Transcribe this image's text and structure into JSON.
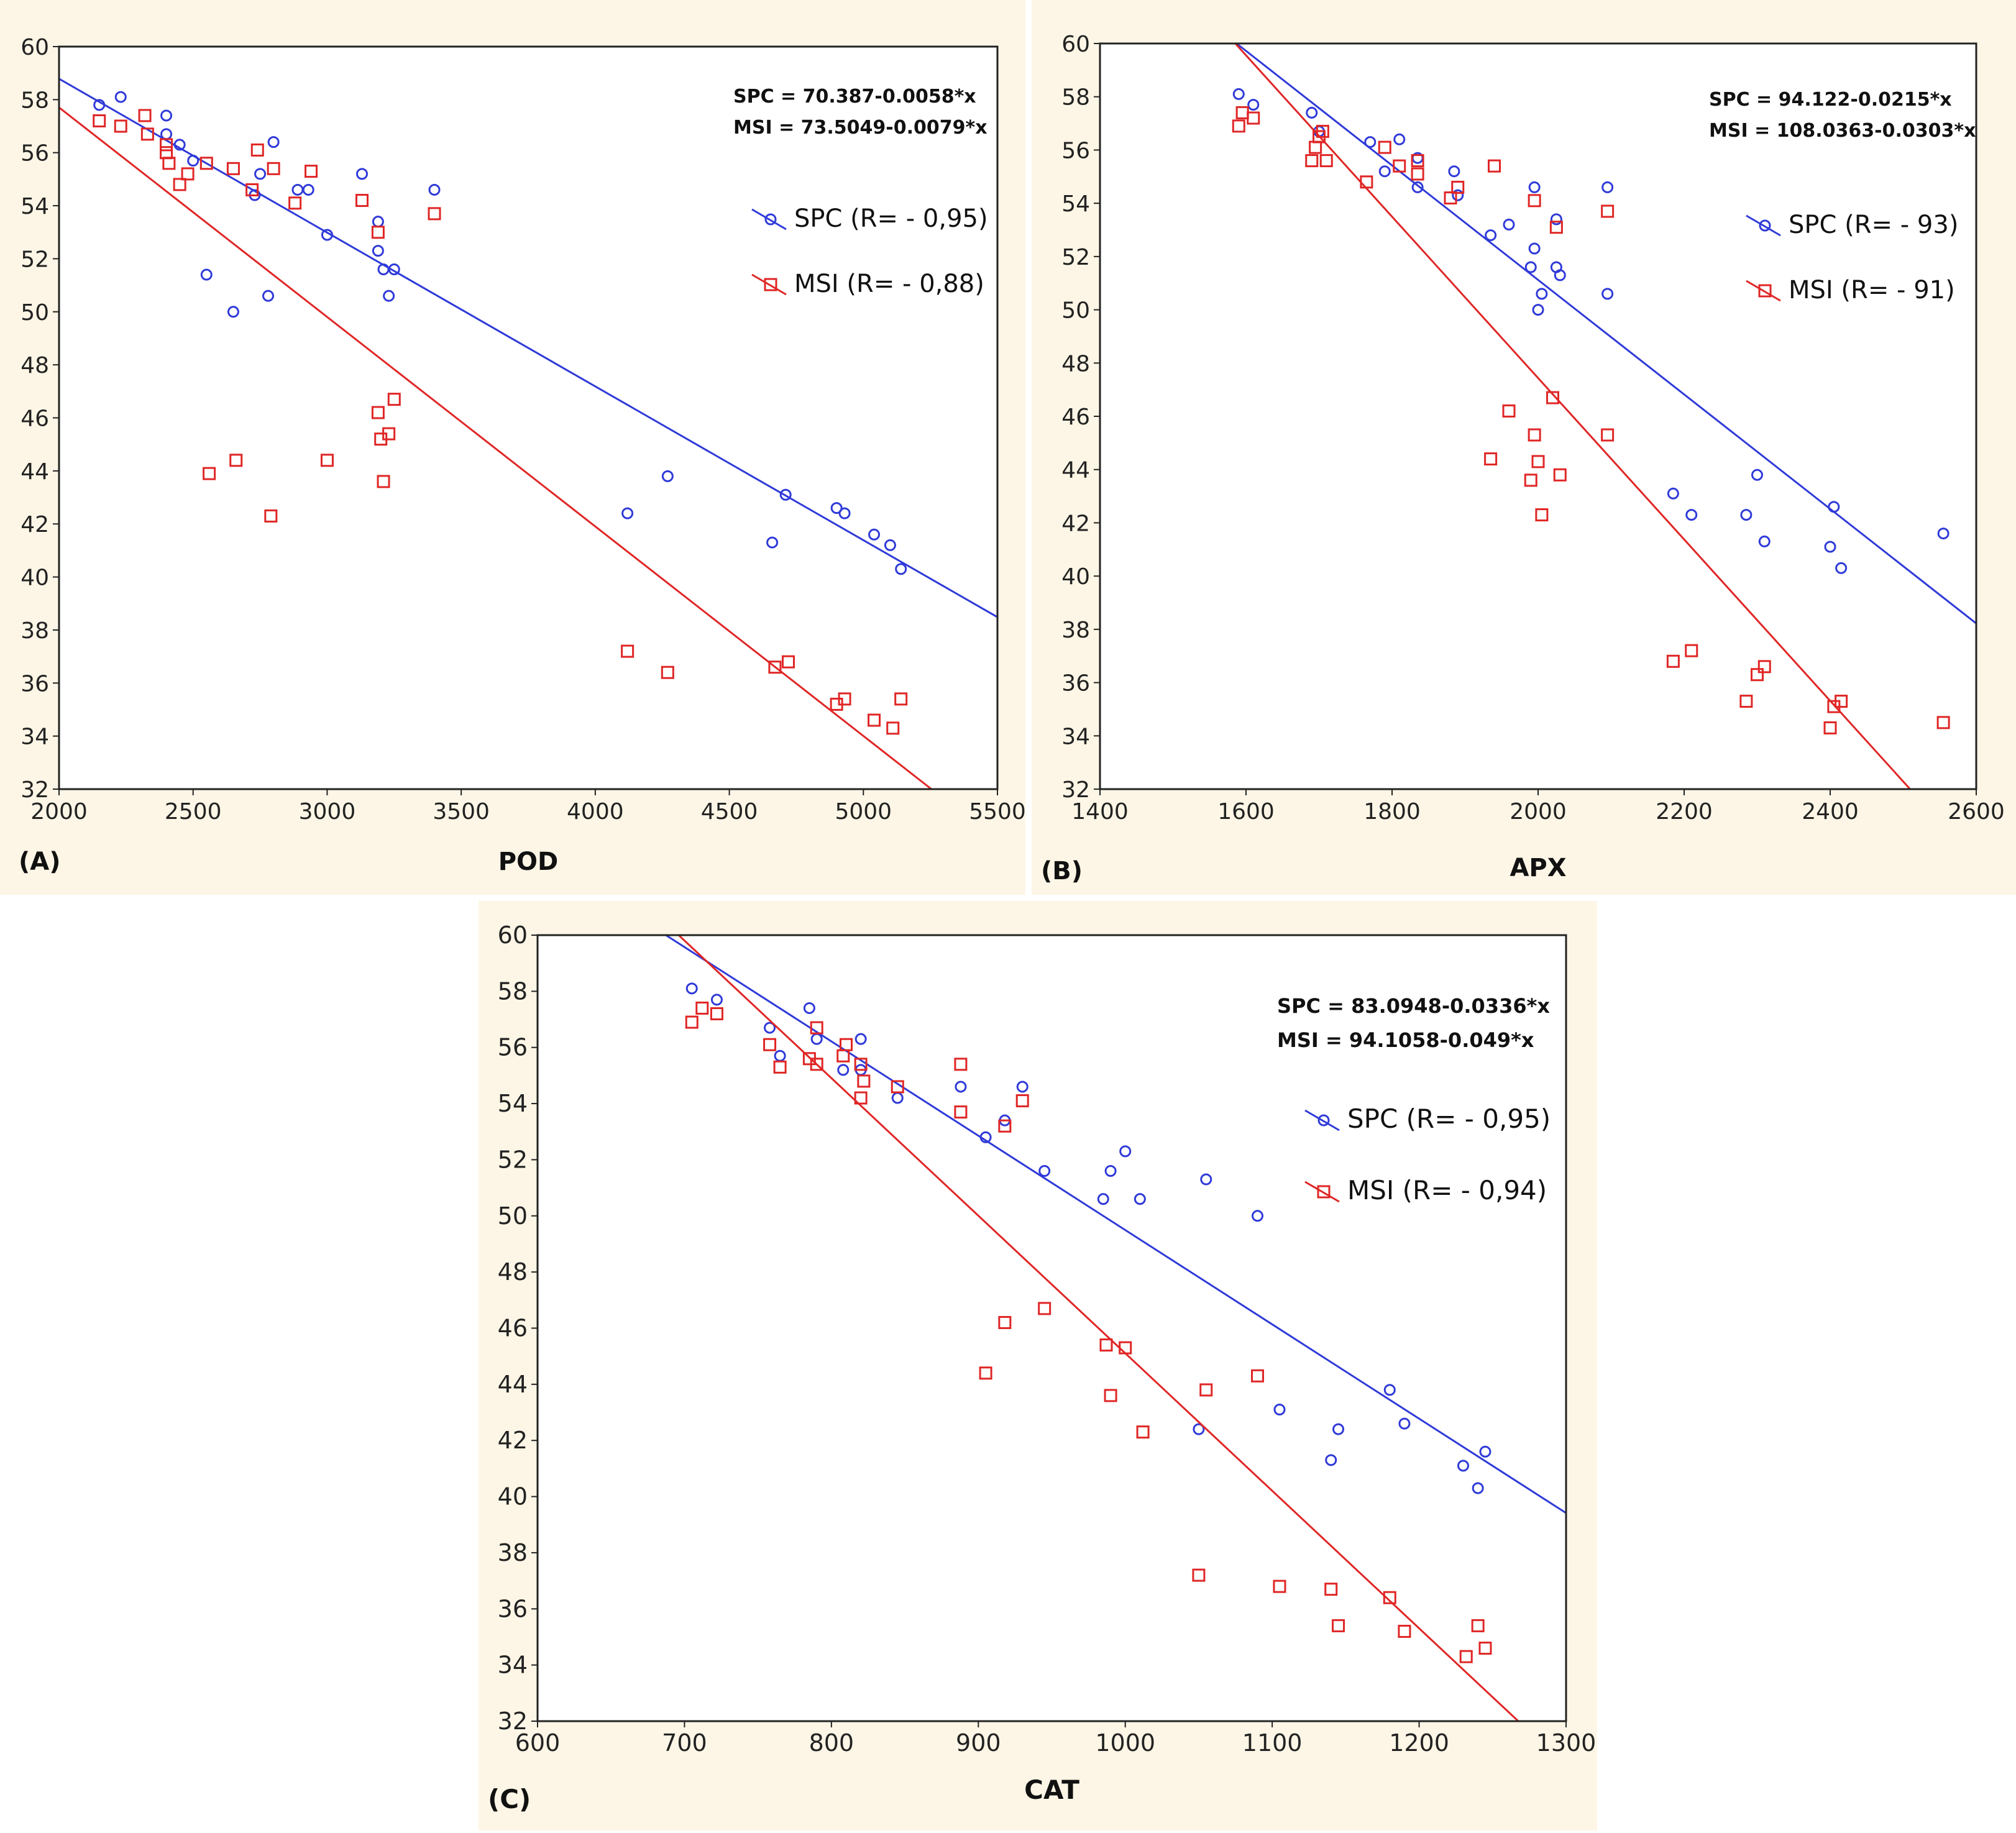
{
  "colors": {
    "panel_background": "#fdf6e6",
    "plot_background": "#ffffff",
    "spc": "#2f3ad8",
    "msi": "#e02626",
    "axis": "#222222"
  },
  "chart_data": [
    {
      "id": "A",
      "panel_label": "(A)",
      "type": "scatter",
      "xlabel": "POD",
      "ylabel": "",
      "xlim": [
        2000,
        5500
      ],
      "ylim": [
        32,
        60
      ],
      "xticks": [
        2000,
        2500,
        3000,
        3500,
        4000,
        4500,
        5000,
        5500
      ],
      "yticks": [
        32,
        34,
        36,
        38,
        40,
        42,
        44,
        46,
        48,
        50,
        52,
        54,
        56,
        58,
        60
      ],
      "grid": false,
      "equations": [
        "SPC = 70.387-0.0058*x",
        "MSI = 73.5049-0.0079*x"
      ],
      "legend_position": "top-right",
      "series": [
        {
          "name": "SPC",
          "legend": "SPC (R= - 0,95)",
          "marker": "circle",
          "fit": {
            "intercept": 70.387,
            "slope": -0.0058
          },
          "points": [
            [
              2150,
              57.8
            ],
            [
              2230,
              58.1
            ],
            [
              2400,
              57.4
            ],
            [
              2400,
              56.7
            ],
            [
              2450,
              56.3
            ],
            [
              2500,
              55.7
            ],
            [
              2550,
              51.4
            ],
            [
              2650,
              50.0
            ],
            [
              2730,
              54.4
            ],
            [
              2750,
              55.2
            ],
            [
              2780,
              50.6
            ],
            [
              2800,
              56.4
            ],
            [
              2890,
              54.6
            ],
            [
              2930,
              54.6
            ],
            [
              3000,
              52.9
            ],
            [
              3130,
              55.2
            ],
            [
              3190,
              53.4
            ],
            [
              3190,
              52.3
            ],
            [
              3210,
              51.6
            ],
            [
              3230,
              50.6
            ],
            [
              3250,
              51.6
            ],
            [
              3400,
              54.6
            ],
            [
              4120,
              42.4
            ],
            [
              4270,
              43.8
            ],
            [
              4660,
              41.3
            ],
            [
              4710,
              43.1
            ],
            [
              4900,
              42.6
            ],
            [
              4930,
              42.4
            ],
            [
              5040,
              41.6
            ],
            [
              5100,
              41.2
            ],
            [
              5140,
              40.3
            ]
          ]
        },
        {
          "name": "MSI",
          "legend": "MSI (R= - 0,88)",
          "marker": "square",
          "fit": {
            "intercept": 73.5049,
            "slope": -0.0079
          },
          "points": [
            [
              2150,
              57.2
            ],
            [
              2230,
              57.0
            ],
            [
              2320,
              57.4
            ],
            [
              2330,
              56.7
            ],
            [
              2400,
              56.3
            ],
            [
              2400,
              56.0
            ],
            [
              2410,
              55.6
            ],
            [
              2450,
              54.8
            ],
            [
              2480,
              55.2
            ],
            [
              2550,
              55.6
            ],
            [
              2560,
              43.9
            ],
            [
              2650,
              55.4
            ],
            [
              2660,
              44.4
            ],
            [
              2720,
              54.6
            ],
            [
              2740,
              56.1
            ],
            [
              2790,
              42.3
            ],
            [
              2800,
              55.4
            ],
            [
              2880,
              54.1
            ],
            [
              2940,
              55.3
            ],
            [
              3000,
              44.4
            ],
            [
              3130,
              54.2
            ],
            [
              3190,
              53.0
            ],
            [
              3190,
              46.2
            ],
            [
              3200,
              45.2
            ],
            [
              3210,
              43.6
            ],
            [
              3230,
              45.4
            ],
            [
              3250,
              46.7
            ],
            [
              3400,
              53.7
            ],
            [
              4120,
              37.2
            ],
            [
              4270,
              36.4
            ],
            [
              4670,
              36.6
            ],
            [
              4720,
              36.8
            ],
            [
              4900,
              35.2
            ],
            [
              4930,
              35.4
            ],
            [
              5040,
              34.6
            ],
            [
              5110,
              34.3
            ],
            [
              5140,
              35.4
            ]
          ]
        }
      ]
    },
    {
      "id": "B",
      "panel_label": "(B)",
      "type": "scatter",
      "xlabel": "APX",
      "ylabel": "",
      "xlim": [
        1400,
        2600
      ],
      "ylim": [
        32,
        60
      ],
      "xticks": [
        1400,
        1600,
        1800,
        2000,
        2200,
        2400,
        2600
      ],
      "yticks": [
        32,
        34,
        36,
        38,
        40,
        42,
        44,
        46,
        48,
        50,
        52,
        54,
        56,
        58,
        60
      ],
      "grid": false,
      "equations": [
        "SPC = 94.122-0.0215*x",
        "MSI = 108.0363-0.0303*x"
      ],
      "legend_position": "top-right",
      "series": [
        {
          "name": "SPC",
          "legend": "SPC (R= - 93)",
          "marker": "circle",
          "fit": {
            "intercept": 94.122,
            "slope": -0.0215
          },
          "points": [
            [
              1590,
              58.1
            ],
            [
              1610,
              57.7
            ],
            [
              1690,
              57.4
            ],
            [
              1700,
              56.7
            ],
            [
              1770,
              56.3
            ],
            [
              1790,
              55.2
            ],
            [
              1810,
              56.4
            ],
            [
              1835,
              55.7
            ],
            [
              1835,
              54.6
            ],
            [
              1885,
              55.2
            ],
            [
              1890,
              54.3
            ],
            [
              1935,
              52.8
            ],
            [
              1960,
              53.2
            ],
            [
              1990,
              51.6
            ],
            [
              1995,
              52.3
            ],
            [
              1995,
              54.6
            ],
            [
              2000,
              50.0
            ],
            [
              2005,
              50.6
            ],
            [
              2025,
              53.4
            ],
            [
              2025,
              51.6
            ],
            [
              2030,
              51.3
            ],
            [
              2095,
              50.6
            ],
            [
              2095,
              54.6
            ],
            [
              2185,
              43.1
            ],
            [
              2210,
              42.3
            ],
            [
              2285,
              42.3
            ],
            [
              2300,
              43.8
            ],
            [
              2310,
              41.3
            ],
            [
              2400,
              41.1
            ],
            [
              2405,
              42.6
            ],
            [
              2415,
              40.3
            ],
            [
              2555,
              41.6
            ]
          ]
        },
        {
          "name": "MSI",
          "legend": "MSI (R= - 91)",
          "marker": "square",
          "fit": {
            "intercept": 108.0363,
            "slope": -0.0303
          },
          "points": [
            [
              1590,
              56.9
            ],
            [
              1595,
              57.4
            ],
            [
              1610,
              57.2
            ],
            [
              1690,
              55.6
            ],
            [
              1695,
              56.1
            ],
            [
              1700,
              56.5
            ],
            [
              1705,
              56.7
            ],
            [
              1710,
              55.6
            ],
            [
              1765,
              54.8
            ],
            [
              1790,
              56.1
            ],
            [
              1810,
              55.4
            ],
            [
              1835,
              55.6
            ],
            [
              1835,
              55.1
            ],
            [
              1880,
              54.2
            ],
            [
              1890,
              54.6
            ],
            [
              1935,
              44.4
            ],
            [
              1940,
              55.4
            ],
            [
              1960,
              46.2
            ],
            [
              1990,
              43.6
            ],
            [
              1995,
              54.1
            ],
            [
              1995,
              45.3
            ],
            [
              2000,
              44.3
            ],
            [
              2005,
              42.3
            ],
            [
              2020,
              46.7
            ],
            [
              2025,
              53.1
            ],
            [
              2030,
              43.8
            ],
            [
              2095,
              45.3
            ],
            [
              2095,
              53.7
            ],
            [
              2185,
              36.8
            ],
            [
              2210,
              37.2
            ],
            [
              2285,
              35.3
            ],
            [
              2300,
              36.3
            ],
            [
              2310,
              36.6
            ],
            [
              2400,
              34.3
            ],
            [
              2405,
              35.1
            ],
            [
              2415,
              35.3
            ],
            [
              2555,
              34.5
            ]
          ]
        }
      ]
    },
    {
      "id": "C",
      "panel_label": "(C)",
      "type": "scatter",
      "xlabel": "CAT",
      "ylabel": "",
      "xlim": [
        600,
        1300
      ],
      "ylim": [
        32,
        60
      ],
      "xticks": [
        600,
        700,
        800,
        900,
        1000,
        1100,
        1200,
        1300
      ],
      "yticks": [
        32,
        34,
        36,
        38,
        40,
        42,
        44,
        46,
        48,
        50,
        52,
        54,
        56,
        58,
        60
      ],
      "grid": false,
      "equations": [
        "SPC = 83.0948-0.0336*x",
        "MSI = 94.1058-0.049*x"
      ],
      "legend_position": "top-right",
      "series": [
        {
          "name": "SPC",
          "legend": "SPC (R= - 0,95)",
          "marker": "circle",
          "fit": {
            "intercept": 83.0948,
            "slope": -0.0336
          },
          "points": [
            [
              705,
              58.1
            ],
            [
              722,
              57.7
            ],
            [
              758,
              56.7
            ],
            [
              765,
              55.7
            ],
            [
              785,
              57.4
            ],
            [
              790,
              56.3
            ],
            [
              808,
              55.2
            ],
            [
              820,
              56.3
            ],
            [
              820,
              55.2
            ],
            [
              845,
              54.2
            ],
            [
              888,
              54.6
            ],
            [
              905,
              52.8
            ],
            [
              918,
              53.4
            ],
            [
              930,
              54.6
            ],
            [
              945,
              51.6
            ],
            [
              985,
              50.6
            ],
            [
              990,
              51.6
            ],
            [
              1000,
              52.3
            ],
            [
              1010,
              50.6
            ],
            [
              1050,
              42.4
            ],
            [
              1055,
              51.3
            ],
            [
              1090,
              50.0
            ],
            [
              1105,
              43.1
            ],
            [
              1140,
              41.3
            ],
            [
              1145,
              42.4
            ],
            [
              1180,
              43.8
            ],
            [
              1190,
              42.6
            ],
            [
              1230,
              41.1
            ],
            [
              1240,
              40.3
            ],
            [
              1245,
              41.6
            ]
          ]
        },
        {
          "name": "MSI",
          "legend": "MSI (R= - 0,94)",
          "marker": "square",
          "fit": {
            "intercept": 94.1058,
            "slope": -0.049
          },
          "points": [
            [
              705,
              56.9
            ],
            [
              712,
              57.4
            ],
            [
              722,
              57.2
            ],
            [
              758,
              56.1
            ],
            [
              765,
              55.3
            ],
            [
              785,
              55.6
            ],
            [
              790,
              56.7
            ],
            [
              790,
              55.4
            ],
            [
              808,
              55.7
            ],
            [
              810,
              56.1
            ],
            [
              820,
              54.2
            ],
            [
              820,
              55.4
            ],
            [
              822,
              54.8
            ],
            [
              845,
              54.6
            ],
            [
              888,
              55.4
            ],
            [
              888,
              53.7
            ],
            [
              905,
              44.4
            ],
            [
              918,
              46.2
            ],
            [
              918,
              53.2
            ],
            [
              930,
              54.1
            ],
            [
              945,
              46.7
            ],
            [
              987,
              45.4
            ],
            [
              990,
              43.6
            ],
            [
              1000,
              45.3
            ],
            [
              1012,
              42.3
            ],
            [
              1050,
              37.2
            ],
            [
              1055,
              43.8
            ],
            [
              1090,
              44.3
            ],
            [
              1105,
              36.8
            ],
            [
              1140,
              36.7
            ],
            [
              1145,
              35.4
            ],
            [
              1180,
              36.4
            ],
            [
              1190,
              35.2
            ],
            [
              1232,
              34.3
            ],
            [
              1240,
              35.4
            ],
            [
              1245,
              34.6
            ]
          ]
        }
      ]
    }
  ]
}
